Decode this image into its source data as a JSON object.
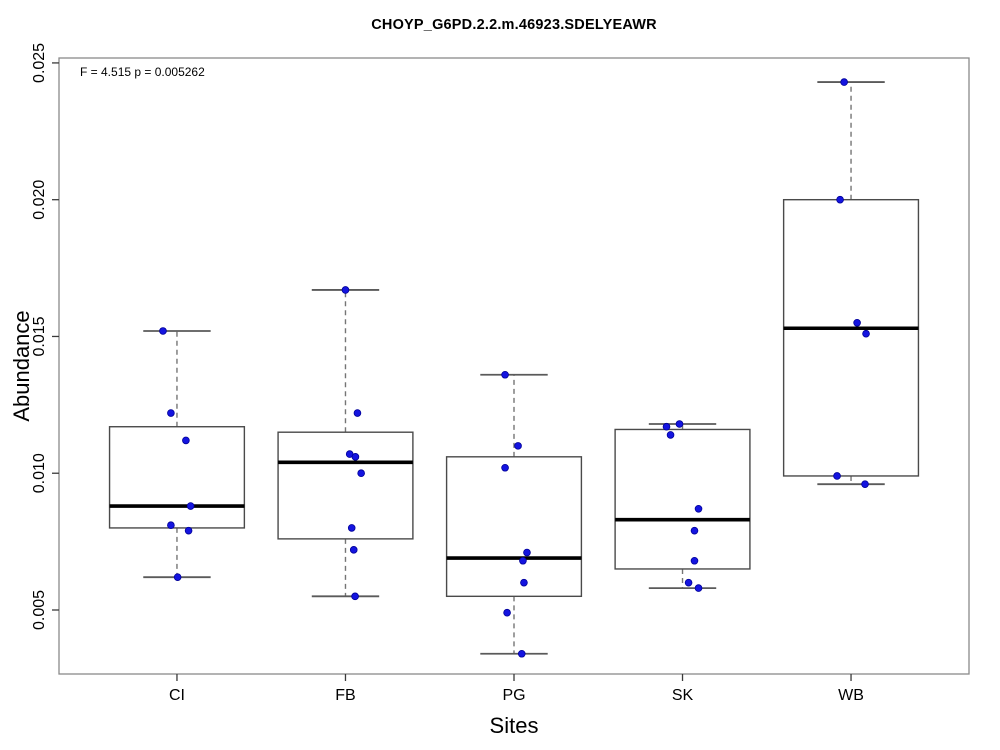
{
  "chart_data": {
    "type": "boxplot",
    "title": "CHOYP_G6PD.2.2.m.46923.SDELYEAWR",
    "annotation": "F = 4.515 p = 0.005262",
    "xlabel": "Sites",
    "ylabel": "Abundance",
    "categories": [
      "CI",
      "FB",
      "PG",
      "SK",
      "WB"
    ],
    "yticks": [
      "0.005",
      "0.010",
      "0.015",
      "0.020",
      "0.025"
    ],
    "ytick_values": [
      0.005,
      0.01,
      0.015,
      0.02,
      0.025
    ],
    "ylim": [
      0.00266,
      0.02518
    ],
    "xlim": [
      0.3,
      5.7
    ],
    "grid": false,
    "legend": null,
    "box_width": 0.8,
    "cap_width": 0.4,
    "boxes": [
      {
        "category": "CI",
        "whisker_low": 0.0062,
        "q1": 0.008,
        "median": 0.0088,
        "q3": 0.0117,
        "whisker_high": 0.0152
      },
      {
        "category": "FB",
        "whisker_low": 0.0055,
        "q1": 0.0076,
        "median": 0.0104,
        "q3": 0.0115,
        "whisker_high": 0.0167
      },
      {
        "category": "PG",
        "whisker_low": 0.0034,
        "q1": 0.0055,
        "median": 0.0069,
        "q3": 0.0106,
        "whisker_high": 0.0136
      },
      {
        "category": "SK",
        "whisker_low": 0.0058,
        "q1": 0.0065,
        "median": 0.0083,
        "q3": 0.0116,
        "whisker_high": 0.0118
      },
      {
        "category": "WB",
        "whisker_low": 0.0096,
        "q1": 0.0099,
        "median": 0.0153,
        "q3": 0.02,
        "whisker_high": 0.0243
      }
    ],
    "points": [
      {
        "category": "CI",
        "values": [
          [
            0.0152,
            -0.083
          ],
          [
            0.0122,
            -0.036
          ],
          [
            0.0112,
            0.053
          ],
          [
            0.0088,
            0.081
          ],
          [
            0.0081,
            -0.036
          ],
          [
            0.0079,
            0.069
          ],
          [
            0.0062,
            0.004
          ]
        ]
      },
      {
        "category": "FB",
        "values": [
          [
            0.0167,
            0.0
          ],
          [
            0.0122,
            0.071
          ],
          [
            0.0107,
            0.025
          ],
          [
            0.0106,
            0.059
          ],
          [
            0.01,
            0.093
          ],
          [
            0.008,
            0.037
          ],
          [
            0.0072,
            0.049
          ],
          [
            0.0055,
            0.057
          ]
        ]
      },
      {
        "category": "PG",
        "values": [
          [
            0.0136,
            -0.053
          ],
          [
            0.011,
            0.024
          ],
          [
            0.0102,
            -0.053
          ],
          [
            0.0071,
            0.077
          ],
          [
            0.0068,
            0.053
          ],
          [
            0.006,
            0.059
          ],
          [
            0.0049,
            -0.041
          ],
          [
            0.0034,
            0.046
          ]
        ]
      },
      {
        "category": "SK",
        "values": [
          [
            0.0118,
            -0.018
          ],
          [
            0.0117,
            -0.095
          ],
          [
            0.0114,
            -0.071
          ],
          [
            0.0087,
            0.095
          ],
          [
            0.0079,
            0.071
          ],
          [
            0.0068,
            0.071
          ],
          [
            0.006,
            0.036
          ],
          [
            0.0058,
            0.095
          ]
        ]
      },
      {
        "category": "WB",
        "values": [
          [
            0.0243,
            -0.041
          ],
          [
            0.02,
            -0.065
          ],
          [
            0.0155,
            0.036
          ],
          [
            0.0151,
            0.089
          ],
          [
            0.0099,
            -0.083
          ],
          [
            0.0096,
            0.083
          ]
        ]
      }
    ],
    "colors": {
      "point_fill": "#1414e0",
      "point_edge": "#000099",
      "box_border": "#4a4a4a",
      "box_fill": "#ffffff",
      "median": "#000000",
      "whisker": "#757575",
      "cap": "#5a5a5a",
      "frame": "#8a8a8a",
      "tick": "#3a3a3a",
      "text": "#000000",
      "background": "#ffffff"
    }
  }
}
